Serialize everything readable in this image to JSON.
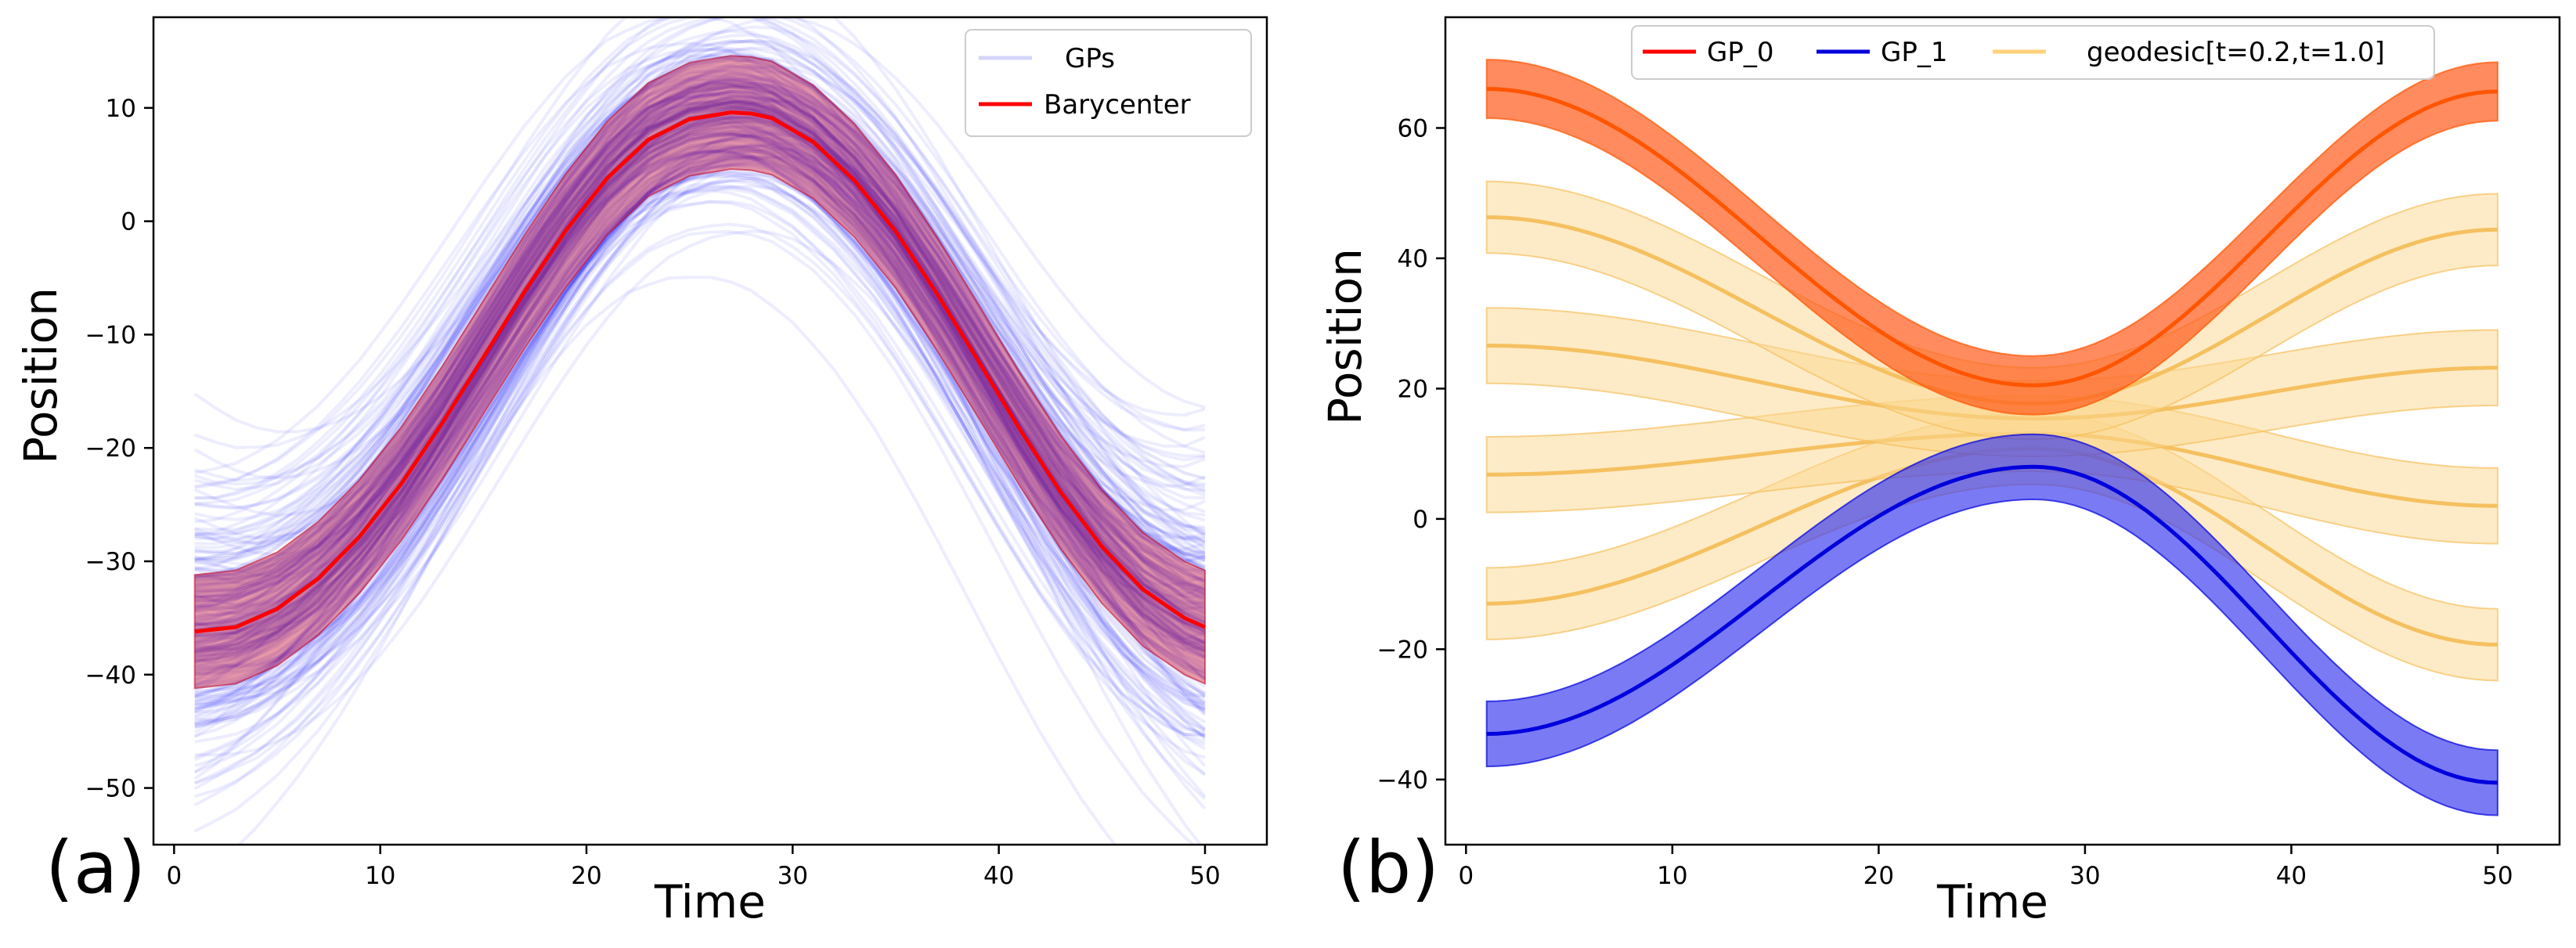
{
  "chart_data": [
    {
      "type": "line",
      "panel_label": "(a)",
      "xlabel": "Time",
      "ylabel": "Position",
      "xlim": [
        -1,
        53
      ],
      "ylim": [
        -55,
        18
      ],
      "xticks": [
        0,
        10,
        20,
        30,
        40,
        50
      ],
      "xtick_labels": [
        "0",
        "10",
        "20",
        "30",
        "40",
        "50"
      ],
      "yticks": [
        -50,
        -40,
        -30,
        -20,
        -10,
        0,
        10
      ],
      "ytick_labels": [
        "−50",
        "−40",
        "−30",
        "−20",
        "−10",
        "0",
        "10"
      ],
      "legend_position": "top-right",
      "legend": [
        {
          "label": "GPs",
          "color": "#d0d0ff"
        },
        {
          "label": "Barycenter",
          "color": "#ff0000"
        }
      ],
      "series": [
        {
          "name": "GPs",
          "kind": "sample-cloud",
          "color": "#0000ff",
          "description_values": "many blue GP sample curves around the barycenter",
          "start_spread": 14,
          "end_spread": 14,
          "peak_spread": 4
        },
        {
          "name": "Barycenter",
          "kind": "mean-with-band",
          "color": "#ff0000",
          "x": [
            1,
            3,
            5,
            7,
            9,
            11,
            13,
            15,
            17,
            19,
            21,
            23,
            25,
            27,
            28,
            29,
            31,
            33,
            35,
            37,
            39,
            41,
            43,
            45,
            47,
            49,
            50
          ],
          "y": [
            -36.2,
            -35.8,
            -34.2,
            -31.5,
            -27.8,
            -23.2,
            -17.8,
            -12.0,
            -6.2,
            -0.8,
            3.8,
            7.2,
            9.0,
            9.6,
            9.5,
            9.1,
            7.0,
            3.6,
            -0.9,
            -6.4,
            -12.3,
            -18.3,
            -23.9,
            -28.7,
            -32.5,
            -35.0,
            -35.8
          ],
          "band": 5.0
        }
      ]
    },
    {
      "type": "line",
      "panel_label": "(b)",
      "xlabel": "Time",
      "ylabel": "Position",
      "xlim": [
        -1,
        53
      ],
      "ylim": [
        -50,
        77
      ],
      "xticks": [
        0,
        10,
        20,
        30,
        40,
        50
      ],
      "xtick_labels": [
        "0",
        "10",
        "20",
        "30",
        "40",
        "50"
      ],
      "yticks": [
        -40,
        -20,
        0,
        20,
        40,
        60
      ],
      "ytick_labels": [
        "−40",
        "−20",
        "0",
        "20",
        "40",
        "60"
      ],
      "legend_position": "top-center",
      "legend": [
        {
          "label": "GP_0",
          "color": "#ff0000"
        },
        {
          "label": "GP_1",
          "color": "#0000dd"
        },
        {
          "label": "geodesic[t=0.2,t=1.0]",
          "color": "#ffd27a"
        }
      ],
      "series": [
        {
          "name": "GP_1",
          "t": 0.0,
          "start": -33,
          "peak": 8,
          "end": -40.5,
          "band": 5.0,
          "line_color": "#0000dd",
          "fill_color": "#3333ee",
          "fill_opacity": 0.65
        },
        {
          "name": "geodesic t=0.2",
          "t": 0.2,
          "start": -13.0,
          "peak": 10.8,
          "end": -19.3,
          "band": 5.5,
          "line_color": "#f5c060",
          "fill_color": "#fbd890",
          "fill_opacity": 0.5
        },
        {
          "name": "geodesic t=0.4",
          "t": 0.4,
          "start": 6.8,
          "peak": 13.1,
          "end": 2.0,
          "band": 5.8,
          "line_color": "#f5c060",
          "fill_color": "#fbd890",
          "fill_opacity": 0.5
        },
        {
          "name": "geodesic t=0.6",
          "t": 0.6,
          "start": 26.6,
          "peak": 15.4,
          "end": 23.2,
          "band": 5.8,
          "line_color": "#f5c060",
          "fill_color": "#fbd890",
          "fill_opacity": 0.5
        },
        {
          "name": "geodesic t=0.8",
          "t": 0.8,
          "start": 46.3,
          "peak": 17.7,
          "end": 44.4,
          "band": 5.5,
          "line_color": "#f5c060",
          "fill_color": "#fbd890",
          "fill_opacity": 0.5
        },
        {
          "name": "GP_0",
          "t": 1.0,
          "start": 66.0,
          "peak": 20.5,
          "end": 65.6,
          "band": 4.5,
          "line_color": "#ff5500",
          "fill_color": "#ff5a1a",
          "fill_opacity": 0.7
        }
      ]
    }
  ]
}
